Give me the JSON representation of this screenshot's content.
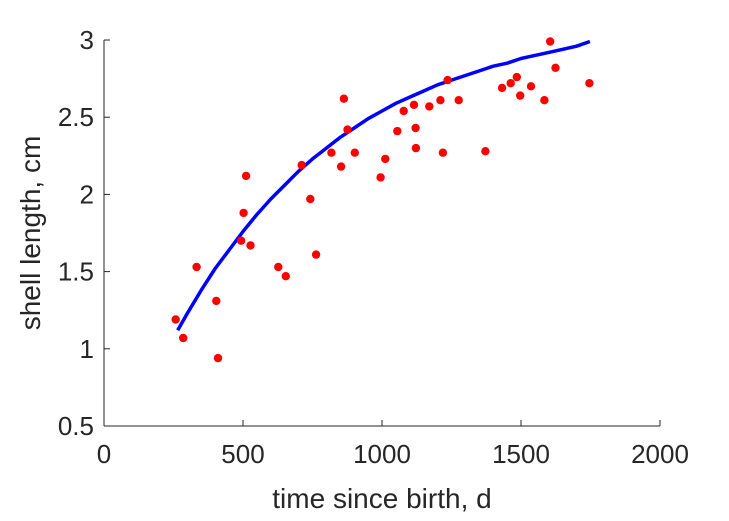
{
  "chart_data": {
    "type": "scatter",
    "title": "",
    "xlabel": "time since birth, d",
    "ylabel": "shell length, cm",
    "xlim": [
      0,
      2000
    ],
    "ylim": [
      0.5,
      3
    ],
    "xticks": [
      0,
      500,
      1000,
      1500,
      2000
    ],
    "xtick_labels": [
      "0",
      "500",
      "1000",
      "1500",
      "2000"
    ],
    "yticks": [
      0.5,
      1,
      1.5,
      2,
      2.5,
      3
    ],
    "ytick_labels": [
      "0.5",
      "1",
      "1.5",
      "2",
      "2.5",
      "3"
    ],
    "grid": false,
    "box": false,
    "colors": {
      "points": "#ff0000",
      "curve": "#0000ff",
      "axes": "#262626"
    },
    "series": [
      {
        "kind": "points",
        "marker": "filled-circle",
        "x": [
          258,
          285,
          333,
          404,
          410,
          493,
          502,
          511,
          527,
          627,
          654,
          711,
          742,
          763,
          818,
          853,
          863,
          876,
          902,
          995,
          1012,
          1055,
          1078,
          1115,
          1121,
          1122,
          1170,
          1210,
          1219,
          1236,
          1276,
          1372,
          1432,
          1463,
          1485,
          1497,
          1536,
          1584,
          1605,
          1624,
          1746
        ],
        "y": [
          1.19,
          1.07,
          1.53,
          1.31,
          0.94,
          1.7,
          1.88,
          2.12,
          1.67,
          1.53,
          1.47,
          2.19,
          1.97,
          1.61,
          2.27,
          2.18,
          2.62,
          2.42,
          2.27,
          2.11,
          2.23,
          2.41,
          2.54,
          2.58,
          2.43,
          2.3,
          2.57,
          2.61,
          2.27,
          2.74,
          2.61,
          2.28,
          2.69,
          2.72,
          2.76,
          2.64,
          2.7,
          2.61,
          2.99,
          2.82,
          2.72
        ]
      },
      {
        "kind": "line",
        "x": [
          265,
          300,
          350,
          400,
          450,
          500,
          550,
          600,
          650,
          700,
          750,
          800,
          850,
          900,
          950,
          1000,
          1050,
          1100,
          1150,
          1200,
          1250,
          1300,
          1350,
          1400,
          1450,
          1500,
          1550,
          1600,
          1650,
          1700,
          1748
        ],
        "y": [
          1.12,
          1.23,
          1.38,
          1.52,
          1.64,
          1.76,
          1.87,
          1.97,
          2.06,
          2.15,
          2.23,
          2.3,
          2.37,
          2.43,
          2.49,
          2.54,
          2.59,
          2.63,
          2.67,
          2.71,
          2.74,
          2.77,
          2.8,
          2.83,
          2.85,
          2.88,
          2.9,
          2.92,
          2.94,
          2.96,
          2.99
        ]
      }
    ]
  }
}
